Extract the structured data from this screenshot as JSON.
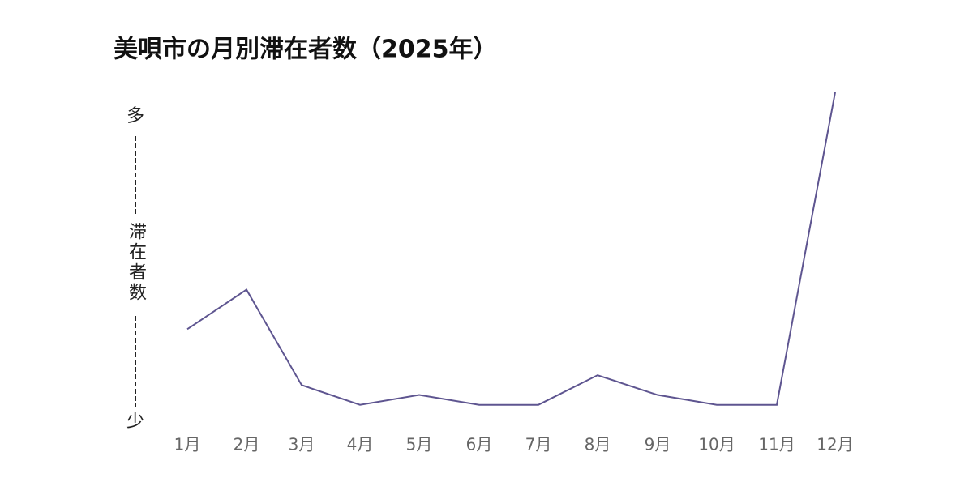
{
  "chart_data": {
    "type": "line",
    "title": "美唄市の月別滞在者数（2025年）",
    "y_label": "滞在者数",
    "y_top_label": "多",
    "y_bottom_label": "少",
    "categories": [
      "1月",
      "2月",
      "3月",
      "4月",
      "5月",
      "6月",
      "7月",
      "8月",
      "9月",
      "10月",
      "11月",
      "12月"
    ],
    "series": [
      {
        "color": "#5e5590",
        "values": [
          28,
          40,
          11,
          5,
          8,
          5,
          5,
          14,
          8,
          5,
          5,
          100
        ]
      }
    ],
    "ylim": [
      0,
      100
    ]
  }
}
